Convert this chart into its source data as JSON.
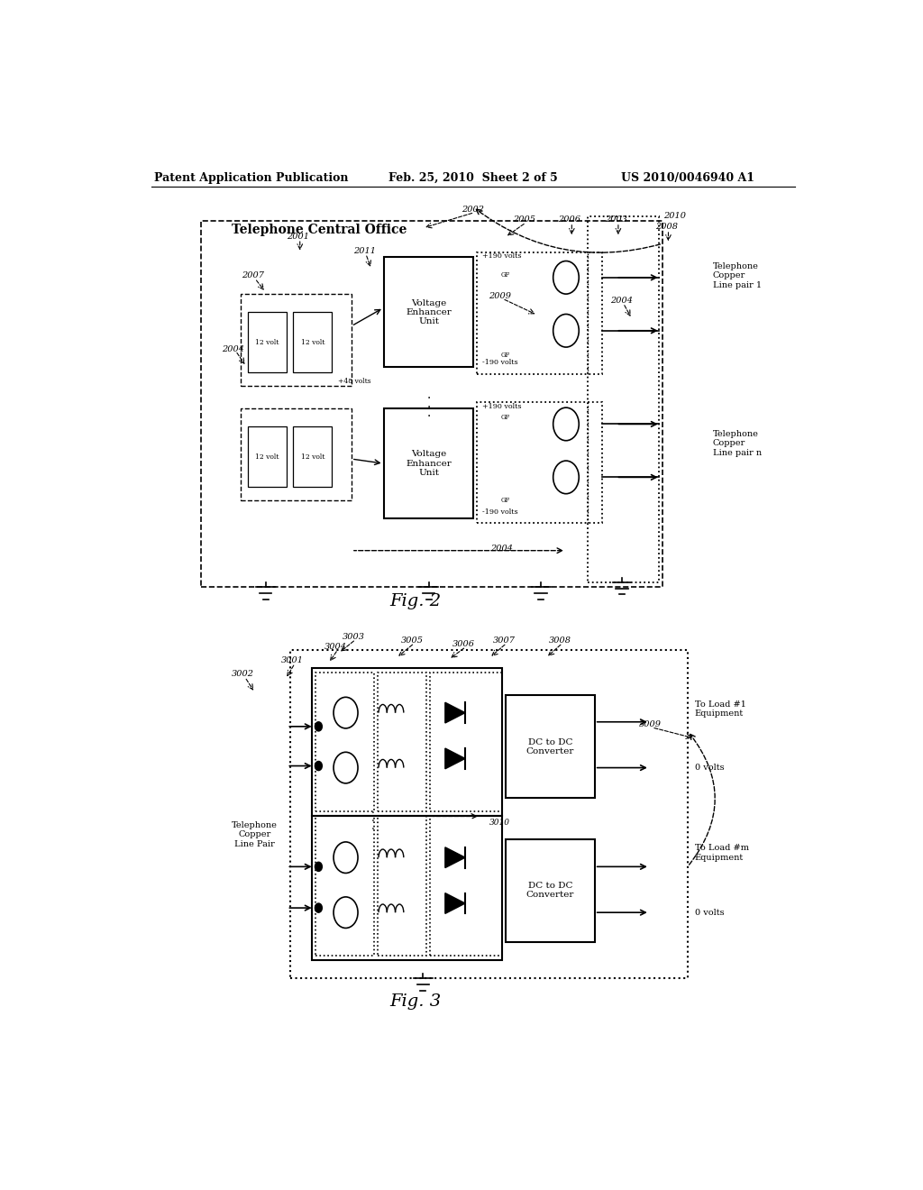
{
  "bg_color": "#ffffff",
  "header_left": "Patent Application Publication",
  "header_mid": "Feb. 25, 2010  Sheet 2 of 5",
  "header_right": "US 2010/0046940 A1",
  "fig2_caption": "Fig. 2",
  "fig3_caption": "Fig. 3"
}
